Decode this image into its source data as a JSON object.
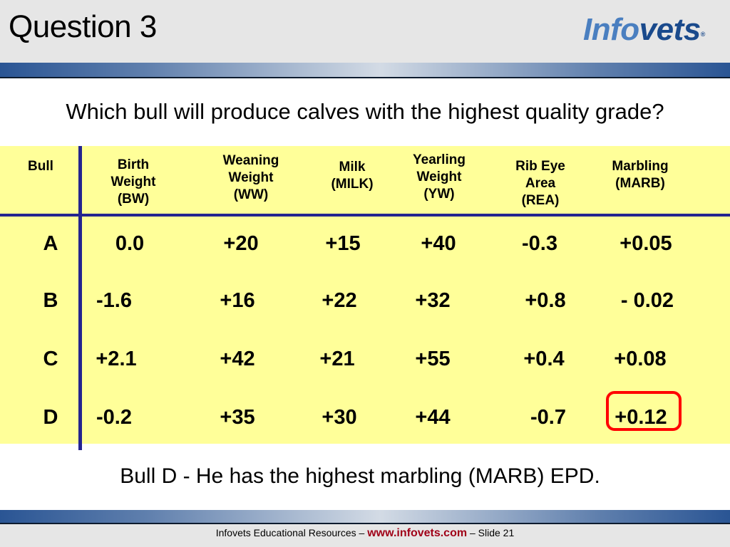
{
  "header": {
    "title": "Question 3",
    "logo_part1": "Info",
    "logo_part2": "vets",
    "logo_reg": "®"
  },
  "question": "Which bull will produce calves with the highest quality grade?",
  "table": {
    "columns": [
      "Bull",
      "Birth\nWeight\n(BW)",
      "Weaning\nWeight\n(WW)",
      "Milk\n(MILK)",
      "Yearling\nWeight\n(YW)",
      "Rib Eye\nArea\n(REA)",
      "Marbling\n(MARB)"
    ],
    "rows": [
      {
        "bull": "A",
        "values": [
          "0.0",
          "+20",
          "+15",
          "+40",
          "-0.3",
          "+0.05"
        ]
      },
      {
        "bull": "B",
        "values": [
          "-1.6",
          "+16",
          "+22",
          "+32",
          "+0.8",
          "- 0.02"
        ]
      },
      {
        "bull": "C",
        "values": [
          "+2.1",
          "+42",
          "+21",
          "+55",
          "+0.4",
          "+0.08"
        ]
      },
      {
        "bull": "D",
        "values": [
          "-0.2",
          "+35",
          "+30",
          "+44",
          "-0.7",
          "+0.12"
        ]
      }
    ],
    "highlighted_cell": "D-MARB"
  },
  "answer": "Bull D - He has the highest marbling (MARB) EPD.",
  "footer": {
    "prefix": "Infovets Educational Resources – ",
    "url": "www.infovets.com",
    "suffix": " – Slide 21"
  },
  "colors": {
    "table_background": "#ffff99",
    "rule_line": "#24248f",
    "highlight": "#ff0000",
    "url": "#a00018"
  }
}
